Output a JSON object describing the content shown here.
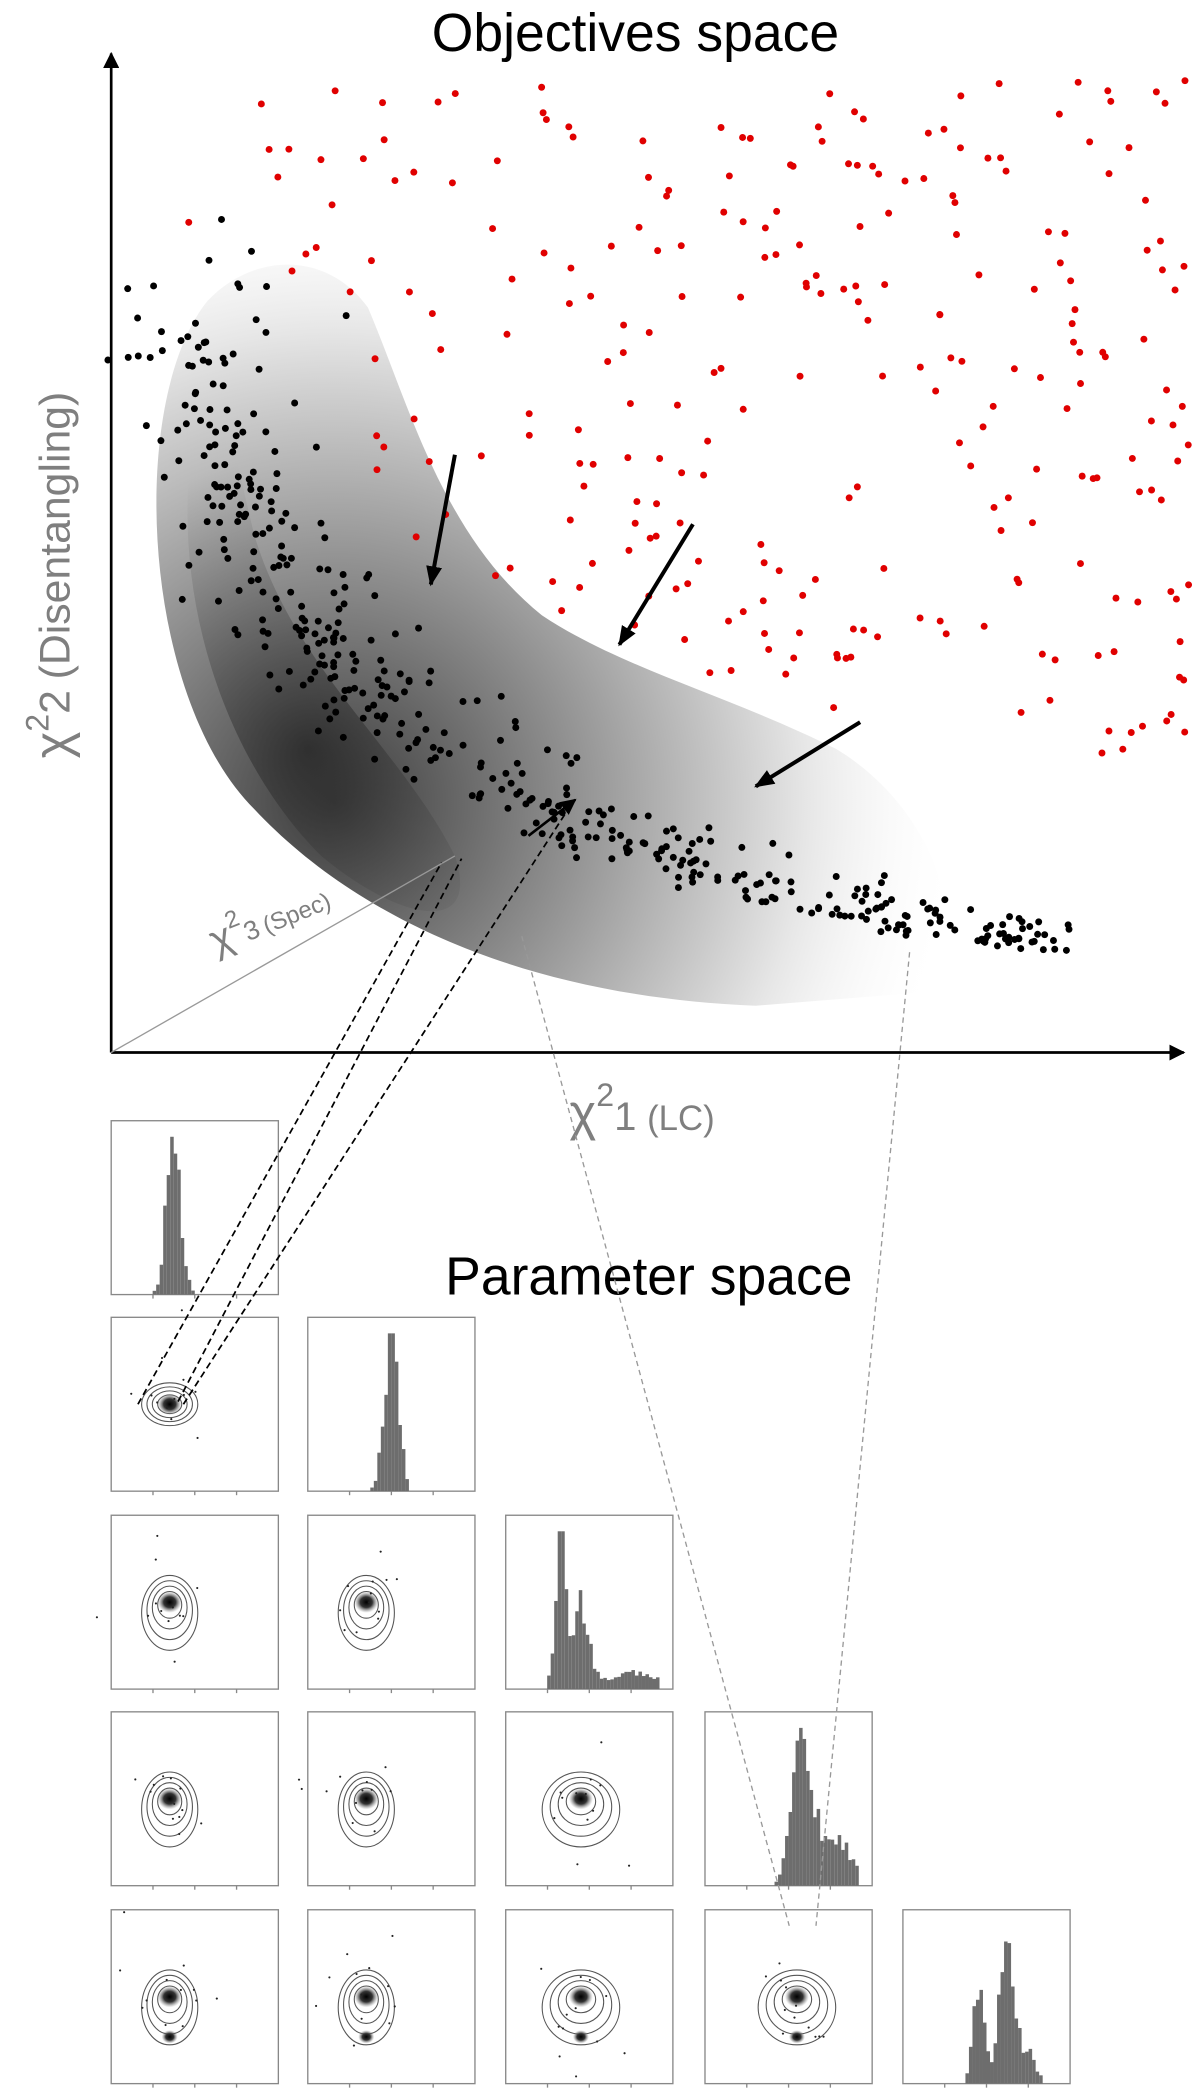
{
  "objectives": {
    "title": "Objectives space",
    "x_axis": {
      "symbol": "χ",
      "superscript": "2",
      "subscript": "1",
      "label": "(LC)"
    },
    "y_axis": {
      "symbol": "χ",
      "superscript": "2",
      "subscript": "2",
      "label": "(Disentangling)"
    },
    "z_axis": {
      "symbol": "χ",
      "superscript": "2",
      "subscript": "3",
      "label": "(Spec)"
    }
  },
  "parameter": {
    "title": "Parameter space"
  }
}
